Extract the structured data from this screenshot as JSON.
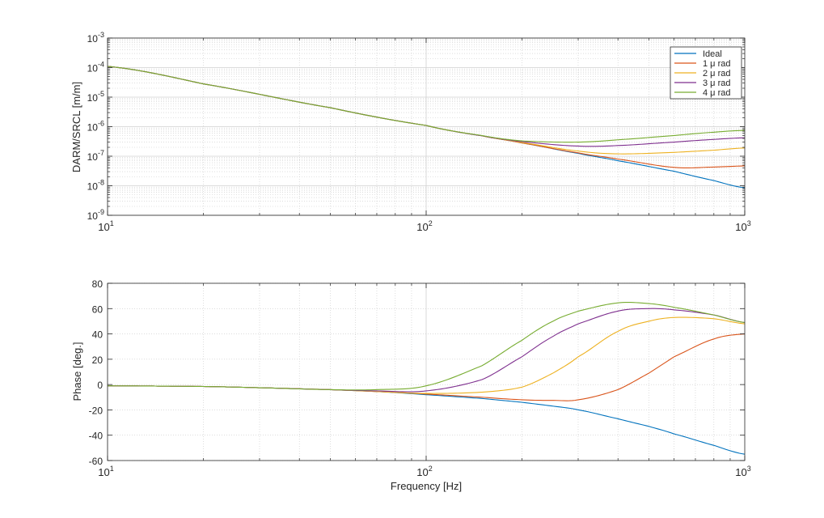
{
  "chart_data": [
    {
      "type": "line",
      "xscale": "log",
      "yscale": "log",
      "xlim": [
        10,
        1000
      ],
      "ylim": [
        1e-09,
        0.001
      ],
      "xlabel": "",
      "ylabel": "DARM/SRCL [m/m]",
      "x_tick_labels": [
        "10^1",
        "10^2",
        "10^3"
      ],
      "y_tick_labels": [
        "10^-9",
        "10^-8",
        "10^-7",
        "10^-6",
        "10^-5",
        "10^-4",
        "10^-3"
      ],
      "grid": true,
      "minor_grid": true,
      "legend_position": "top-right",
      "x": [
        10,
        20,
        50,
        100,
        150,
        200,
        300,
        400,
        600,
        800,
        1000
      ],
      "series": [
        {
          "name": "Ideal",
          "color": "#0072BD",
          "values": [
            0.00011,
            2.8e-05,
            4.4e-06,
            1.1e-06,
            4.9e-07,
            2.8e-07,
            1.25e-07,
            7e-08,
            3.1e-08,
            1.5e-08,
            8.5e-09
          ]
        },
        {
          "name": "1 μ rad",
          "color": "#D95319",
          "values": [
            0.00011,
            2.8e-05,
            4.4e-06,
            1.1e-06,
            4.9e-07,
            2.8e-07,
            1.3e-07,
            8e-08,
            4.2e-08,
            4.3e-08,
            4.7e-08
          ]
        },
        {
          "name": "2 μ rad",
          "color": "#EDB120",
          "values": [
            0.00011,
            2.8e-05,
            4.4e-06,
            1.1e-06,
            4.9e-07,
            2.9e-07,
            1.5e-07,
            1.2e-07,
            1.35e-07,
            1.6e-07,
            1.9e-07
          ]
        },
        {
          "name": "3 μ rad",
          "color": "#7E2F8E",
          "values": [
            0.00011,
            2.8e-05,
            4.4e-06,
            1.1e-06,
            4.9e-07,
            3.1e-07,
            2.2e-07,
            2.3e-07,
            3e-07,
            3.7e-07,
            4.2e-07
          ]
        },
        {
          "name": "4 μ rad",
          "color": "#77AC30",
          "values": [
            0.00011,
            2.8e-05,
            4.4e-06,
            1.1e-06,
            5e-07,
            3.3e-07,
            3e-07,
            3.6e-07,
            5e-07,
            6.5e-07,
            7.5e-07
          ]
        }
      ]
    },
    {
      "type": "line",
      "xscale": "log",
      "yscale": "linear",
      "xlim": [
        10,
        1000
      ],
      "ylim": [
        -60,
        80
      ],
      "xlabel": "Frequency [Hz]",
      "ylabel": "Phase [deg.]",
      "x_tick_labels": [
        "10^1",
        "10^2",
        "10^3"
      ],
      "y_ticks": [
        -60,
        -40,
        -20,
        0,
        20,
        40,
        60,
        80
      ],
      "grid": true,
      "minor_grid": true,
      "x": [
        10,
        20,
        30,
        50,
        70,
        100,
        150,
        200,
        250,
        300,
        400,
        500,
        600,
        800,
        1000
      ],
      "series": [
        {
          "name": "Ideal",
          "color": "#0072BD",
          "values": [
            -1,
            -1.5,
            -2.5,
            -4,
            -5.5,
            -8,
            -11,
            -14,
            -17,
            -20,
            -27,
            -33,
            -39,
            -48,
            -55
          ]
        },
        {
          "name": "1 μ rad",
          "color": "#D95319",
          "values": [
            -1,
            -1.5,
            -2.5,
            -4,
            -5.5,
            -7.5,
            -10,
            -12,
            -12.5,
            -12,
            -4,
            9,
            22,
            36,
            40
          ]
        },
        {
          "name": "2 μ rad",
          "color": "#EDB120",
          "values": [
            -1,
            -1.5,
            -2.5,
            -4,
            -5.5,
            -7,
            -6,
            -2,
            9,
            22,
            42,
            50,
            53,
            52,
            48
          ]
        },
        {
          "name": "3 μ rad",
          "color": "#7E2F8E",
          "values": [
            -1,
            -1.5,
            -2.5,
            -4,
            -5,
            -5,
            4,
            22,
            38,
            48,
            58,
            60,
            59,
            55,
            49
          ]
        },
        {
          "name": "4 μ rad",
          "color": "#77AC30",
          "values": [
            -1,
            -1.5,
            -2.5,
            -4,
            -4,
            -1,
            15,
            35,
            50,
            58,
            64.5,
            64,
            61,
            55,
            49
          ]
        }
      ]
    }
  ]
}
